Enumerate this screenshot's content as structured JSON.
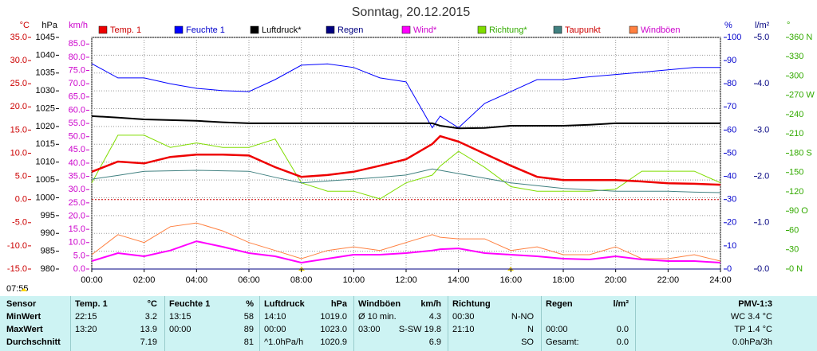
{
  "chart_data": {
    "type": "line",
    "title": "Sonntag, 20.12.2015",
    "time": "07:55",
    "grid": true,
    "zero_line": true,
    "axes": [
      {
        "unit": "°C",
        "color": "#cc0000",
        "side": "left",
        "lim": [
          -15,
          35
        ],
        "ticks": [
          {
            "value": 35,
            "label": "35.0"
          },
          {
            "value": 30,
            "label": "30.0"
          },
          {
            "value": 25,
            "label": "25.0"
          },
          {
            "value": 20,
            "label": "20.0"
          },
          {
            "value": 15,
            "label": "15.0"
          },
          {
            "value": 10,
            "label": "10.0"
          },
          {
            "value": 5,
            "label": "5.0"
          },
          {
            "value": 0,
            "label": "0.0"
          },
          {
            "value": -5,
            "label": "-5.0"
          },
          {
            "value": -10,
            "label": "-10.0"
          },
          {
            "value": -15,
            "label": "-15.0"
          }
        ]
      },
      {
        "unit": "hPa",
        "color": "#000000",
        "side": "left",
        "lim": [
          980,
          1045
        ],
        "ticks": [
          1045,
          1040,
          1035,
          1030,
          1025,
          1020,
          1015,
          1010,
          1005,
          1000,
          995,
          990,
          985,
          980
        ]
      },
      {
        "unit": "km/h",
        "color": "#cc00cc",
        "side": "left",
        "lim": [
          0,
          87.5
        ],
        "ticks": [
          {
            "value": 85,
            "label": "85.0"
          },
          {
            "value": 80,
            "label": "80.0"
          },
          {
            "value": 75,
            "label": "75.0"
          },
          {
            "value": 70,
            "label": "70.0"
          },
          {
            "value": 65,
            "label": "65.0"
          },
          {
            "value": 60,
            "label": "60.0"
          },
          {
            "value": 55,
            "label": "55.0"
          },
          {
            "value": 50,
            "label": "50.0"
          },
          {
            "value": 45,
            "label": "45.0"
          },
          {
            "value": 40,
            "label": "40.0"
          },
          {
            "value": 35,
            "label": "35.0"
          },
          {
            "value": 30,
            "label": "30.0"
          },
          {
            "value": 25,
            "label": "25.0"
          },
          {
            "value": 20,
            "label": "20.0"
          },
          {
            "value": 15,
            "label": "15.0"
          },
          {
            "value": 10,
            "label": "10.0"
          },
          {
            "value": 5,
            "label": "5.0"
          },
          {
            "value": 0,
            "label": "0.0"
          }
        ]
      },
      {
        "unit": "%",
        "color": "#0000cc",
        "side": "right",
        "lim": [
          0,
          100
        ],
        "ticks": [
          100,
          90,
          80,
          70,
          60,
          50,
          40,
          30,
          20,
          10,
          0
        ]
      },
      {
        "unit": "l/m²",
        "color": "#000080",
        "side": "right",
        "lim": [
          0,
          5
        ],
        "ticks": [
          {
            "value": 5,
            "label": "5.0"
          },
          {
            "value": 4,
            "label": "4.0"
          },
          {
            "value": 3,
            "label": "3.0"
          },
          {
            "value": 2,
            "label": "2.0"
          },
          {
            "value": 1,
            "label": "1.0"
          },
          {
            "value": 0,
            "label": "0.0"
          }
        ]
      },
      {
        "unit": "°",
        "color": "#33aa00",
        "side": "right",
        "lim": [
          0,
          360
        ],
        "ticks": [
          {
            "value": 360,
            "label": "360 N"
          },
          330,
          300,
          {
            "value": 270,
            "label": "270 W"
          },
          240,
          210,
          {
            "value": 180,
            "label": "180 S"
          },
          150,
          120,
          {
            "value": 90,
            "label": "90 O"
          },
          60,
          30,
          {
            "value": 0,
            "label": "0 N"
          }
        ]
      }
    ],
    "xlim": [
      0,
      24
    ],
    "xticks": [
      {
        "value": 0,
        "label": "00:00"
      },
      {
        "value": 2,
        "label": "02:00"
      },
      {
        "value": 4,
        "label": "04:00"
      },
      {
        "value": 6,
        "label": "06:00"
      },
      {
        "value": 8,
        "label": "08:00"
      },
      {
        "value": 10,
        "label": "10:00"
      },
      {
        "value": 12,
        "label": "12:00"
      },
      {
        "value": 14,
        "label": "14:00"
      },
      {
        "value": 16,
        "label": "16:00"
      },
      {
        "value": 18,
        "label": "18:00"
      },
      {
        "value": 20,
        "label": "20:00"
      },
      {
        "value": 22,
        "label": "22:00"
      },
      {
        "value": 24,
        "label": "24:00"
      }
    ],
    "x": [
      0,
      1,
      2,
      3,
      4,
      5,
      6,
      7,
      8,
      9,
      10,
      11,
      12,
      13,
      13.3,
      14,
      15,
      16,
      17,
      18,
      19,
      20,
      21,
      22,
      23,
      24
    ],
    "series": [
      {
        "name": "Temp. 1",
        "color": "#ee0000",
        "label_color": "#cc0000",
        "axis": 0,
        "width": 2.5,
        "values": [
          6,
          8.2,
          7.8,
          9.2,
          9.7,
          9.7,
          9.5,
          7,
          4.9,
          5.3,
          6,
          7.3,
          8.7,
          12,
          13.7,
          12.5,
          9.9,
          7.3,
          4.9,
          4.2,
          4.2,
          4.2,
          3.9,
          3.5,
          3.4,
          3.2
        ]
      },
      {
        "name": "Feuchte 1",
        "color": "#0000ff",
        "label_color": "#0000cc",
        "axis": 3,
        "width": 1,
        "values": [
          88.7,
          82.5,
          82.5,
          80,
          78,
          77,
          76.6,
          81.8,
          88,
          88.6,
          87,
          82.5,
          80.8,
          61,
          66,
          61,
          71.5,
          76.6,
          81.8,
          81.8,
          83,
          84,
          85,
          86,
          87,
          87
        ]
      },
      {
        "name": "Luftdruck*",
        "color": "#000000",
        "label_color": "#000000",
        "axis": 1,
        "width": 2,
        "values": [
          1022.9,
          1022.5,
          1022,
          1021.8,
          1021.6,
          1021.2,
          1020.9,
          1020.9,
          1020.9,
          1020.9,
          1020.9,
          1020.9,
          1020.9,
          1020.9,
          1020.2,
          1019.5,
          1019.6,
          1020.2,
          1020.2,
          1020.2,
          1020.5,
          1020.9,
          1020.9,
          1020.9,
          1020.9,
          1020.9
        ]
      },
      {
        "name": "Regen",
        "color": "#000080",
        "label_color": "#000080",
        "axis": 4,
        "width": 1,
        "values": [
          0,
          0,
          0,
          0,
          0,
          0,
          0,
          0,
          0,
          0,
          0,
          0,
          0,
          0,
          0,
          0,
          0,
          0,
          0,
          0,
          0,
          0,
          0,
          0,
          0,
          0
        ]
      },
      {
        "name": "Wind*",
        "color": "#ff00ff",
        "label_color": "#cc00cc",
        "axis": 2,
        "width": 2,
        "values": [
          3,
          6,
          4.8,
          7,
          10.5,
          8.4,
          6,
          4.8,
          2.4,
          3.9,
          5.4,
          5.4,
          6,
          7,
          7.5,
          7.8,
          6,
          5.4,
          4.8,
          3.9,
          3.6,
          4.8,
          3.6,
          3,
          3,
          2.4
        ]
      },
      {
        "name": "Richtung*",
        "color": "#80dd00",
        "label_color": "#33aa00",
        "axis": 5,
        "width": 1,
        "values": [
          134,
          208,
          208,
          189,
          196,
          189,
          189,
          202,
          134,
          121,
          121,
          109,
          134,
          146,
          160,
          183,
          158,
          128,
          121,
          121,
          121,
          124,
          152,
          152,
          152,
          134
        ]
      },
      {
        "name": "Taupunkt",
        "color": "#408080",
        "label_color": "#cc0000",
        "axis": 0,
        "width": 1,
        "values": [
          4.4,
          5.2,
          6.1,
          6.2,
          6.3,
          6.2,
          6.1,
          4.8,
          3.6,
          4,
          4.4,
          4.8,
          5.3,
          6.6,
          6.3,
          5.6,
          4.6,
          3.6,
          3,
          2.4,
          2.1,
          1.8,
          1.8,
          1.8,
          1.6,
          1.5
        ]
      },
      {
        "name": "Windböen",
        "color": "#ff8040",
        "label_color": "#cc00cc",
        "axis": 2,
        "width": 1,
        "values": [
          5.4,
          13,
          10,
          16,
          17.4,
          14.4,
          10,
          7,
          3.9,
          7,
          8.4,
          7,
          10,
          13,
          12,
          11.4,
          11.4,
          7,
          8.4,
          5.4,
          5.4,
          8.4,
          3.9,
          3.9,
          5.4,
          3
        ]
      }
    ]
  },
  "table": {
    "header": [
      "Sensor",
      "Temp. 1",
      "°C",
      "Feuchte 1",
      "%",
      "Luftdruck",
      "hPa",
      "Windböen",
      "km/h",
      "Richtung",
      null,
      "Regen",
      "l/m²",
      "PMV-1:3"
    ],
    "rows": [
      [
        "MinWert",
        "22:15",
        "3.2",
        "13:15",
        "58",
        "14:10",
        "1019.0",
        "Ø 10 min.",
        "4.3",
        "00:30",
        "N-NO",
        null,
        null,
        "WC 3.4 °C"
      ],
      [
        "MaxWert",
        "13:20",
        "13.9",
        "00:00",
        "89",
        "00:00",
        "1023.0",
        "03:00",
        "S-SW 19.8",
        "21:10",
        "N",
        "00:00",
        "0.0",
        "TP 1.4 °C"
      ],
      [
        "Durchschnitt",
        null,
        "7.19",
        null,
        "81",
        "^1.0hPa/h",
        "1020.9",
        null,
        "6.9",
        null,
        "SO",
        "Gesamt:",
        "0.0",
        "0.0hPa/3h"
      ]
    ]
  }
}
